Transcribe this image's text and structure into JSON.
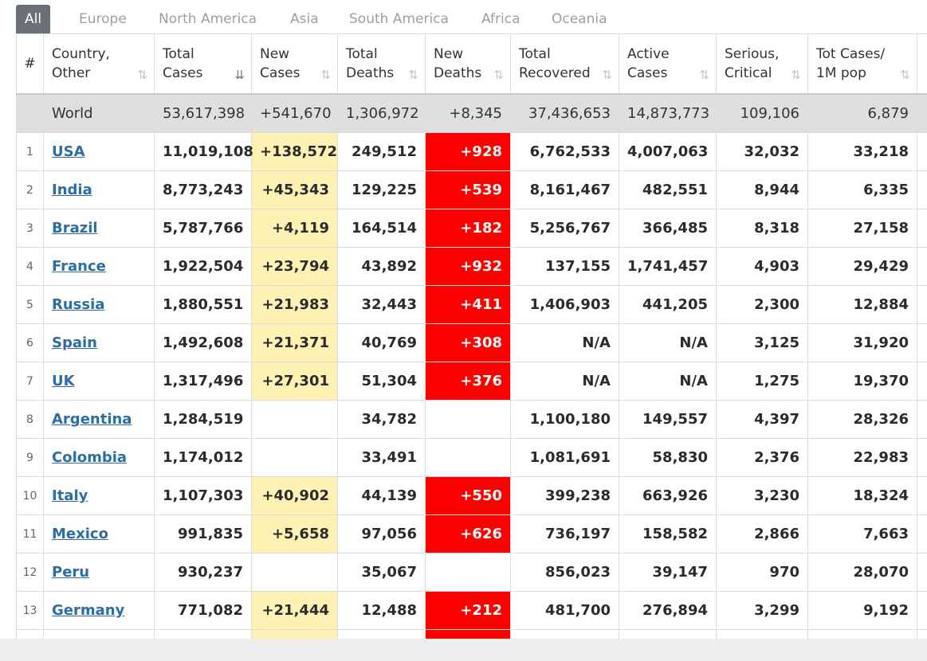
{
  "tabs": [
    "All",
    "Europe",
    "North America",
    "Asia",
    "South America",
    "Africa",
    "Oceania"
  ],
  "headers": {
    "num": "#",
    "country": [
      "Country,",
      "Other"
    ],
    "total_cases": [
      "Total",
      "Cases"
    ],
    "new_cases": [
      "New",
      "Cases"
    ],
    "total_deaths": [
      "Total",
      "Deaths"
    ],
    "new_deaths": [
      "New",
      "Deaths"
    ],
    "total_recovered": [
      "Total",
      "Recovered"
    ],
    "active_cases": [
      "Active",
      "Cases"
    ],
    "serious": [
      "Serious,",
      "Critical"
    ],
    "tot_per_m": [
      "Tot Cases/",
      "1M pop"
    ]
  },
  "sort_icons": {
    "sortable": "⇅",
    "sorted_desc": "⇊"
  },
  "world": {
    "country": "World",
    "total_cases": "53,617,398",
    "new_cases": "+541,670",
    "total_deaths": "1,306,972",
    "new_deaths": "+8,345",
    "total_recovered": "37,436,653",
    "active_cases": "14,873,773",
    "serious": "109,106",
    "tot_per_m": "6,879"
  },
  "rows": [
    {
      "num": "1",
      "country": "USA",
      "total_cases": "11,019,108",
      "new_cases": "+138,572",
      "total_deaths": "249,512",
      "new_deaths": "+928",
      "total_recovered": "6,762,533",
      "active_cases": "4,007,063",
      "serious": "32,032",
      "tot_per_m": "33,218"
    },
    {
      "num": "2",
      "country": "India",
      "total_cases": "8,773,243",
      "new_cases": "+45,343",
      "total_deaths": "129,225",
      "new_deaths": "+539",
      "total_recovered": "8,161,467",
      "active_cases": "482,551",
      "serious": "8,944",
      "tot_per_m": "6,335"
    },
    {
      "num": "3",
      "country": "Brazil",
      "total_cases": "5,787,766",
      "new_cases": "+4,119",
      "total_deaths": "164,514",
      "new_deaths": "+182",
      "total_recovered": "5,256,767",
      "active_cases": "366,485",
      "serious": "8,318",
      "tot_per_m": "27,158"
    },
    {
      "num": "4",
      "country": "France",
      "total_cases": "1,922,504",
      "new_cases": "+23,794",
      "total_deaths": "43,892",
      "new_deaths": "+932",
      "total_recovered": "137,155",
      "active_cases": "1,741,457",
      "serious": "4,903",
      "tot_per_m": "29,429"
    },
    {
      "num": "5",
      "country": "Russia",
      "total_cases": "1,880,551",
      "new_cases": "+21,983",
      "total_deaths": "32,443",
      "new_deaths": "+411",
      "total_recovered": "1,406,903",
      "active_cases": "441,205",
      "serious": "2,300",
      "tot_per_m": "12,884"
    },
    {
      "num": "6",
      "country": "Spain",
      "total_cases": "1,492,608",
      "new_cases": "+21,371",
      "total_deaths": "40,769",
      "new_deaths": "+308",
      "total_recovered": "N/A",
      "active_cases": "N/A",
      "serious": "3,125",
      "tot_per_m": "31,920"
    },
    {
      "num": "7",
      "country": "UK",
      "total_cases": "1,317,496",
      "new_cases": "+27,301",
      "total_deaths": "51,304",
      "new_deaths": "+376",
      "total_recovered": "N/A",
      "active_cases": "N/A",
      "serious": "1,275",
      "tot_per_m": "19,370"
    },
    {
      "num": "8",
      "country": "Argentina",
      "total_cases": "1,284,519",
      "new_cases": "",
      "total_deaths": "34,782",
      "new_deaths": "",
      "total_recovered": "1,100,180",
      "active_cases": "149,557",
      "serious": "4,397",
      "tot_per_m": "28,326"
    },
    {
      "num": "9",
      "country": "Colombia",
      "total_cases": "1,174,012",
      "new_cases": "",
      "total_deaths": "33,491",
      "new_deaths": "",
      "total_recovered": "1,081,691",
      "active_cases": "58,830",
      "serious": "2,376",
      "tot_per_m": "22,983"
    },
    {
      "num": "10",
      "country": "Italy",
      "total_cases": "1,107,303",
      "new_cases": "+40,902",
      "total_deaths": "44,139",
      "new_deaths": "+550",
      "total_recovered": "399,238",
      "active_cases": "663,926",
      "serious": "3,230",
      "tot_per_m": "18,324"
    },
    {
      "num": "11",
      "country": "Mexico",
      "total_cases": "991,835",
      "new_cases": "+5,658",
      "total_deaths": "97,056",
      "new_deaths": "+626",
      "total_recovered": "736,197",
      "active_cases": "158,582",
      "serious": "2,866",
      "tot_per_m": "7,663"
    },
    {
      "num": "12",
      "country": "Peru",
      "total_cases": "930,237",
      "new_cases": "",
      "total_deaths": "35,067",
      "new_deaths": "",
      "total_recovered": "856,023",
      "active_cases": "39,147",
      "serious": "970",
      "tot_per_m": "28,070"
    },
    {
      "num": "13",
      "country": "Germany",
      "total_cases": "771,082",
      "new_cases": "+21,444",
      "total_deaths": "12,488",
      "new_deaths": "+212",
      "total_recovered": "481,700",
      "active_cases": "276,894",
      "serious": "3,299",
      "tot_per_m": "9,192"
    }
  ],
  "colors": {
    "new_cases_bg": "#fdf1b4",
    "new_deaths_bg": "#ff0000",
    "link": "#2e6da4",
    "world_row_bg": "#dfdfdf",
    "active_tab_bg": "#6b7076"
  }
}
